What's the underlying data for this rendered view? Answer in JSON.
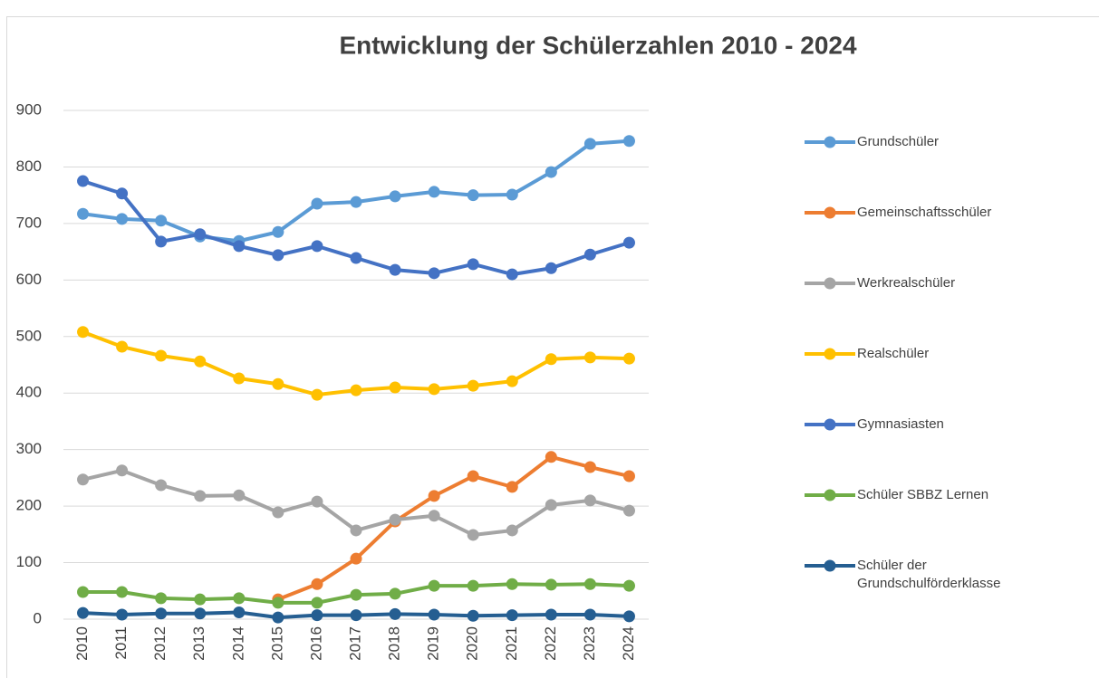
{
  "chart_data": {
    "type": "line",
    "title": "Entwicklung der Schülerzahlen 2010 - 2024",
    "categories": [
      "2010",
      "2011",
      "2012",
      "2013",
      "2014",
      "2015",
      "2016",
      "2017",
      "2018",
      "2019",
      "2020",
      "2021",
      "2022",
      "2023",
      "2024"
    ],
    "series": [
      {
        "name": "Grundschüler",
        "color": "#5b9bd5",
        "values": [
          717,
          708,
          705,
          677,
          669,
          685,
          735,
          738,
          748,
          756,
          750,
          751,
          791,
          841,
          846
        ]
      },
      {
        "name": "Gemeinschaftsschüler",
        "color": "#ed7d31",
        "values": [
          null,
          null,
          null,
          null,
          null,
          35,
          62,
          107,
          173,
          218,
          253,
          234,
          287,
          269,
          253
        ]
      },
      {
        "name": "Werkrealschüler",
        "color": "#a5a5a5",
        "values": [
          247,
          263,
          237,
          218,
          219,
          189,
          208,
          157,
          176,
          183,
          149,
          157,
          202,
          210,
          192
        ]
      },
      {
        "name": "Realschüler",
        "color": "#ffc000",
        "values": [
          508,
          482,
          466,
          456,
          426,
          416,
          397,
          405,
          410,
          407,
          413,
          421,
          460,
          463,
          461
        ]
      },
      {
        "name": "Gymnasiasten",
        "color": "#4472c4",
        "values": [
          775,
          753,
          668,
          681,
          660,
          644,
          660,
          639,
          618,
          612,
          628,
          610,
          621,
          645,
          666
        ]
      },
      {
        "name": "Schüler SBBZ Lernen",
        "color": "#70ad47",
        "values": [
          48,
          48,
          37,
          35,
          37,
          29,
          29,
          43,
          45,
          59,
          59,
          62,
          61,
          62,
          59
        ]
      },
      {
        "name": "Schüler der Grundschulförderklasse",
        "color": "#255e91",
        "values": [
          11,
          8,
          10,
          10,
          12,
          3,
          7,
          7,
          9,
          8,
          6,
          7,
          8,
          8,
          5
        ]
      }
    ],
    "ylim": [
      0,
      900
    ],
    "yticks": [
      0,
      100,
      200,
      300,
      400,
      500,
      600,
      700,
      800,
      900
    ],
    "grid": true,
    "legend": "right"
  }
}
